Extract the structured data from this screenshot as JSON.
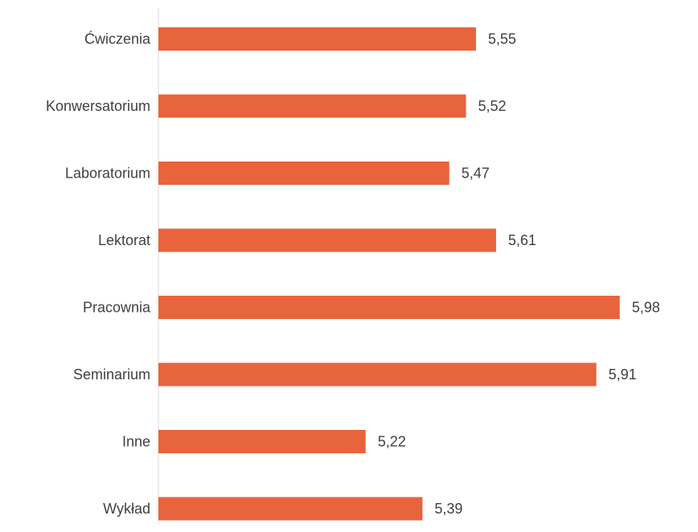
{
  "chart_data": {
    "type": "bar",
    "orientation": "horizontal",
    "categories": [
      "Ćwiczenia",
      "Konwersatorium",
      "Laboratorium",
      "Lektorat",
      "Pracownia",
      "Seminarium",
      "Inne",
      "Wykład"
    ],
    "values": [
      5.55,
      5.52,
      5.47,
      5.61,
      5.98,
      5.91,
      5.22,
      5.39
    ],
    "value_labels": [
      "5,55",
      "5,52",
      "5,47",
      "5,61",
      "5,98",
      "5,91",
      "5,22",
      "5,39"
    ],
    "title": "",
    "xlabel": "",
    "ylabel": "",
    "xlim": [
      4.6,
      6.0
    ],
    "grid": false,
    "legend": "none",
    "colors": {
      "bar": "#E8643C",
      "axis": "#D9D9D9",
      "text": "#404040"
    }
  }
}
